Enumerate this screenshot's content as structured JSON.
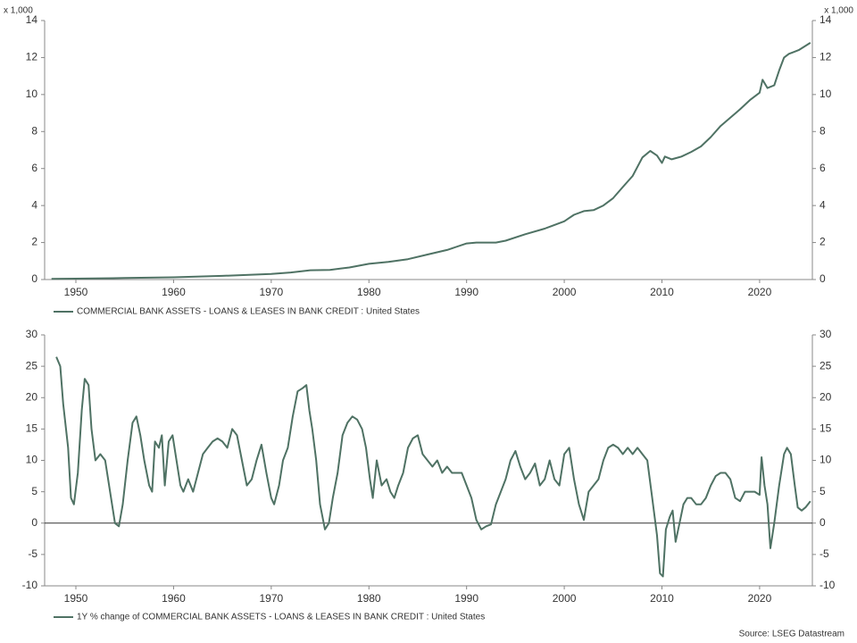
{
  "chart_data": [
    {
      "type": "line",
      "y_unit_label": "x 1,000",
      "x": [
        1947.5,
        1950,
        1955,
        1960,
        1965,
        1970,
        1972,
        1974,
        1976,
        1978,
        1980,
        1982,
        1984,
        1986,
        1988,
        1990,
        1991,
        1993,
        1994,
        1996,
        1998,
        2000,
        2001,
        2002,
        2003,
        2004,
        2005,
        2006,
        2007,
        2008,
        2008.8,
        2009.5,
        2010,
        2010.3,
        2011,
        2012,
        2013,
        2014,
        2015,
        2016,
        2017,
        2018,
        2019,
        2020,
        2020.3,
        2020.8,
        2021.5,
        2022,
        2022.5,
        2023,
        2024,
        2025.2
      ],
      "series": [
        {
          "name": "COMMERCIAL BANK ASSETS - LOANS & LEASES IN BANK CREDIT : United States",
          "color": "#4f7264",
          "values": [
            0.04,
            0.05,
            0.08,
            0.12,
            0.2,
            0.3,
            0.38,
            0.5,
            0.52,
            0.65,
            0.85,
            0.95,
            1.1,
            1.35,
            1.6,
            1.95,
            2.0,
            2.0,
            2.1,
            2.45,
            2.75,
            3.15,
            3.5,
            3.7,
            3.75,
            4.0,
            4.4,
            5.0,
            5.6,
            6.6,
            6.95,
            6.7,
            6.3,
            6.65,
            6.5,
            6.65,
            6.9,
            7.2,
            7.7,
            8.3,
            8.75,
            9.2,
            9.7,
            10.1,
            10.8,
            10.35,
            10.5,
            11.3,
            12.0,
            12.2,
            12.4,
            12.8
          ]
        }
      ],
      "xlim": [
        1946.8,
        2025.4
      ],
      "xticks": [
        1950,
        1960,
        1970,
        1980,
        1990,
        2000,
        2010,
        2020
      ],
      "ylim": [
        0,
        14
      ],
      "yticks": [
        0,
        2,
        4,
        6,
        8,
        10,
        12,
        14
      ]
    },
    {
      "type": "line",
      "zero_line": true,
      "x": [
        1948,
        1948.4,
        1948.7,
        1949.2,
        1949.5,
        1949.8,
        1950.2,
        1950.6,
        1950.9,
        1951.3,
        1951.6,
        1952,
        1952.5,
        1953,
        1953.5,
        1954,
        1954.4,
        1954.8,
        1955.3,
        1955.8,
        1956.2,
        1956.6,
        1957,
        1957.5,
        1957.8,
        1958.1,
        1958.5,
        1958.8,
        1959.1,
        1959.5,
        1959.9,
        1960.3,
        1960.7,
        1961,
        1961.5,
        1962,
        1962.5,
        1963,
        1963.5,
        1964,
        1964.5,
        1965,
        1965.5,
        1966,
        1966.5,
        1967,
        1967.5,
        1968,
        1968.5,
        1969,
        1969.5,
        1970,
        1970.3,
        1970.8,
        1971.2,
        1971.7,
        1972.2,
        1972.7,
        1973.2,
        1973.6,
        1973.9,
        1974.2,
        1974.6,
        1975,
        1975.5,
        1975.9,
        1976.3,
        1976.8,
        1977.3,
        1977.8,
        1978.3,
        1978.8,
        1979.3,
        1979.7,
        1980.1,
        1980.4,
        1980.8,
        1981.3,
        1981.8,
        1982.2,
        1982.6,
        1983,
        1983.5,
        1984,
        1984.5,
        1985,
        1985.5,
        1986,
        1986.5,
        1987,
        1987.5,
        1988,
        1988.5,
        1989,
        1989.5,
        1990,
        1990.5,
        1991,
        1991.5,
        1992,
        1992.5,
        1993,
        1993.5,
        1994,
        1994.5,
        1995,
        1995.5,
        1996,
        1996.5,
        1997,
        1997.5,
        1998,
        1998.5,
        1999,
        1999.5,
        2000,
        2000.5,
        2001,
        2001.5,
        2002,
        2002.5,
        2003,
        2003.5,
        2004,
        2004.5,
        2005,
        2005.5,
        2006,
        2006.5,
        2007,
        2007.5,
        2008,
        2008.5,
        2009,
        2009.5,
        2009.8,
        2010.1,
        2010.4,
        2010.8,
        2011.1,
        2011.4,
        2011.8,
        2012.2,
        2012.6,
        2013,
        2013.5,
        2014,
        2014.5,
        2015,
        2015.5,
        2016,
        2016.5,
        2017,
        2017.5,
        2018,
        2018.5,
        2019,
        2019.5,
        2020,
        2020.2,
        2020.5,
        2020.8,
        2021.1,
        2021.5,
        2022,
        2022.5,
        2022.8,
        2023.2,
        2023.6,
        2023.9,
        2024.3,
        2024.7,
        2025.2
      ],
      "series": [
        {
          "name": "1Y % change of COMMERCIAL BANK ASSETS - LOANS & LEASES IN BANK CREDIT : United States",
          "color": "#4f7264",
          "values": [
            26.5,
            25,
            19,
            12,
            4,
            3,
            8,
            18,
            23,
            22,
            15,
            10,
            11,
            10,
            5,
            0,
            -0.5,
            3,
            10,
            16,
            17,
            14,
            10,
            6,
            5,
            13,
            12,
            14,
            6,
            13,
            14,
            10,
            6,
            5,
            7,
            5,
            8,
            11,
            12,
            13,
            13.5,
            13,
            12,
            15,
            14,
            10,
            6,
            7,
            10,
            12.5,
            8,
            4,
            3,
            6,
            10,
            12,
            17,
            21,
            21.5,
            22,
            18,
            15,
            10,
            3,
            -1,
            0,
            4,
            8,
            14,
            16,
            17,
            16.5,
            15,
            12,
            7,
            4,
            10,
            6,
            7,
            5,
            4,
            6,
            8,
            12,
            13.5,
            14,
            11,
            10,
            9,
            10,
            8,
            9,
            8,
            8,
            8,
            6,
            4,
            0.5,
            -1,
            -0.5,
            -0.2,
            3,
            5,
            7,
            10,
            11.5,
            9,
            7,
            8,
            9.5,
            6,
            7,
            10,
            7,
            6,
            11,
            12,
            7,
            3,
            0.5,
            5,
            6,
            7,
            10,
            12,
            12.5,
            12,
            11,
            12,
            11,
            12,
            11,
            10,
            4,
            -2,
            -8,
            -8.5,
            -1,
            1,
            2,
            -3,
            0,
            3,
            4,
            4,
            3,
            3,
            4,
            6,
            7.5,
            8,
            8,
            7,
            4,
            3.5,
            5,
            5,
            5,
            4.5,
            10.5,
            6,
            3,
            -4,
            0,
            6,
            11,
            12,
            11,
            6,
            2.5,
            2,
            2.5,
            3.5
          ]
        }
      ],
      "xlim": [
        1946.8,
        2025.4
      ],
      "xticks": [
        1950,
        1960,
        1970,
        1980,
        1990,
        2000,
        2010,
        2020
      ],
      "ylim": [
        -10,
        30
      ],
      "yticks": [
        -10,
        -5,
        0,
        5,
        10,
        15,
        20,
        25,
        30
      ]
    }
  ],
  "source": "Source: LSEG Datastream"
}
